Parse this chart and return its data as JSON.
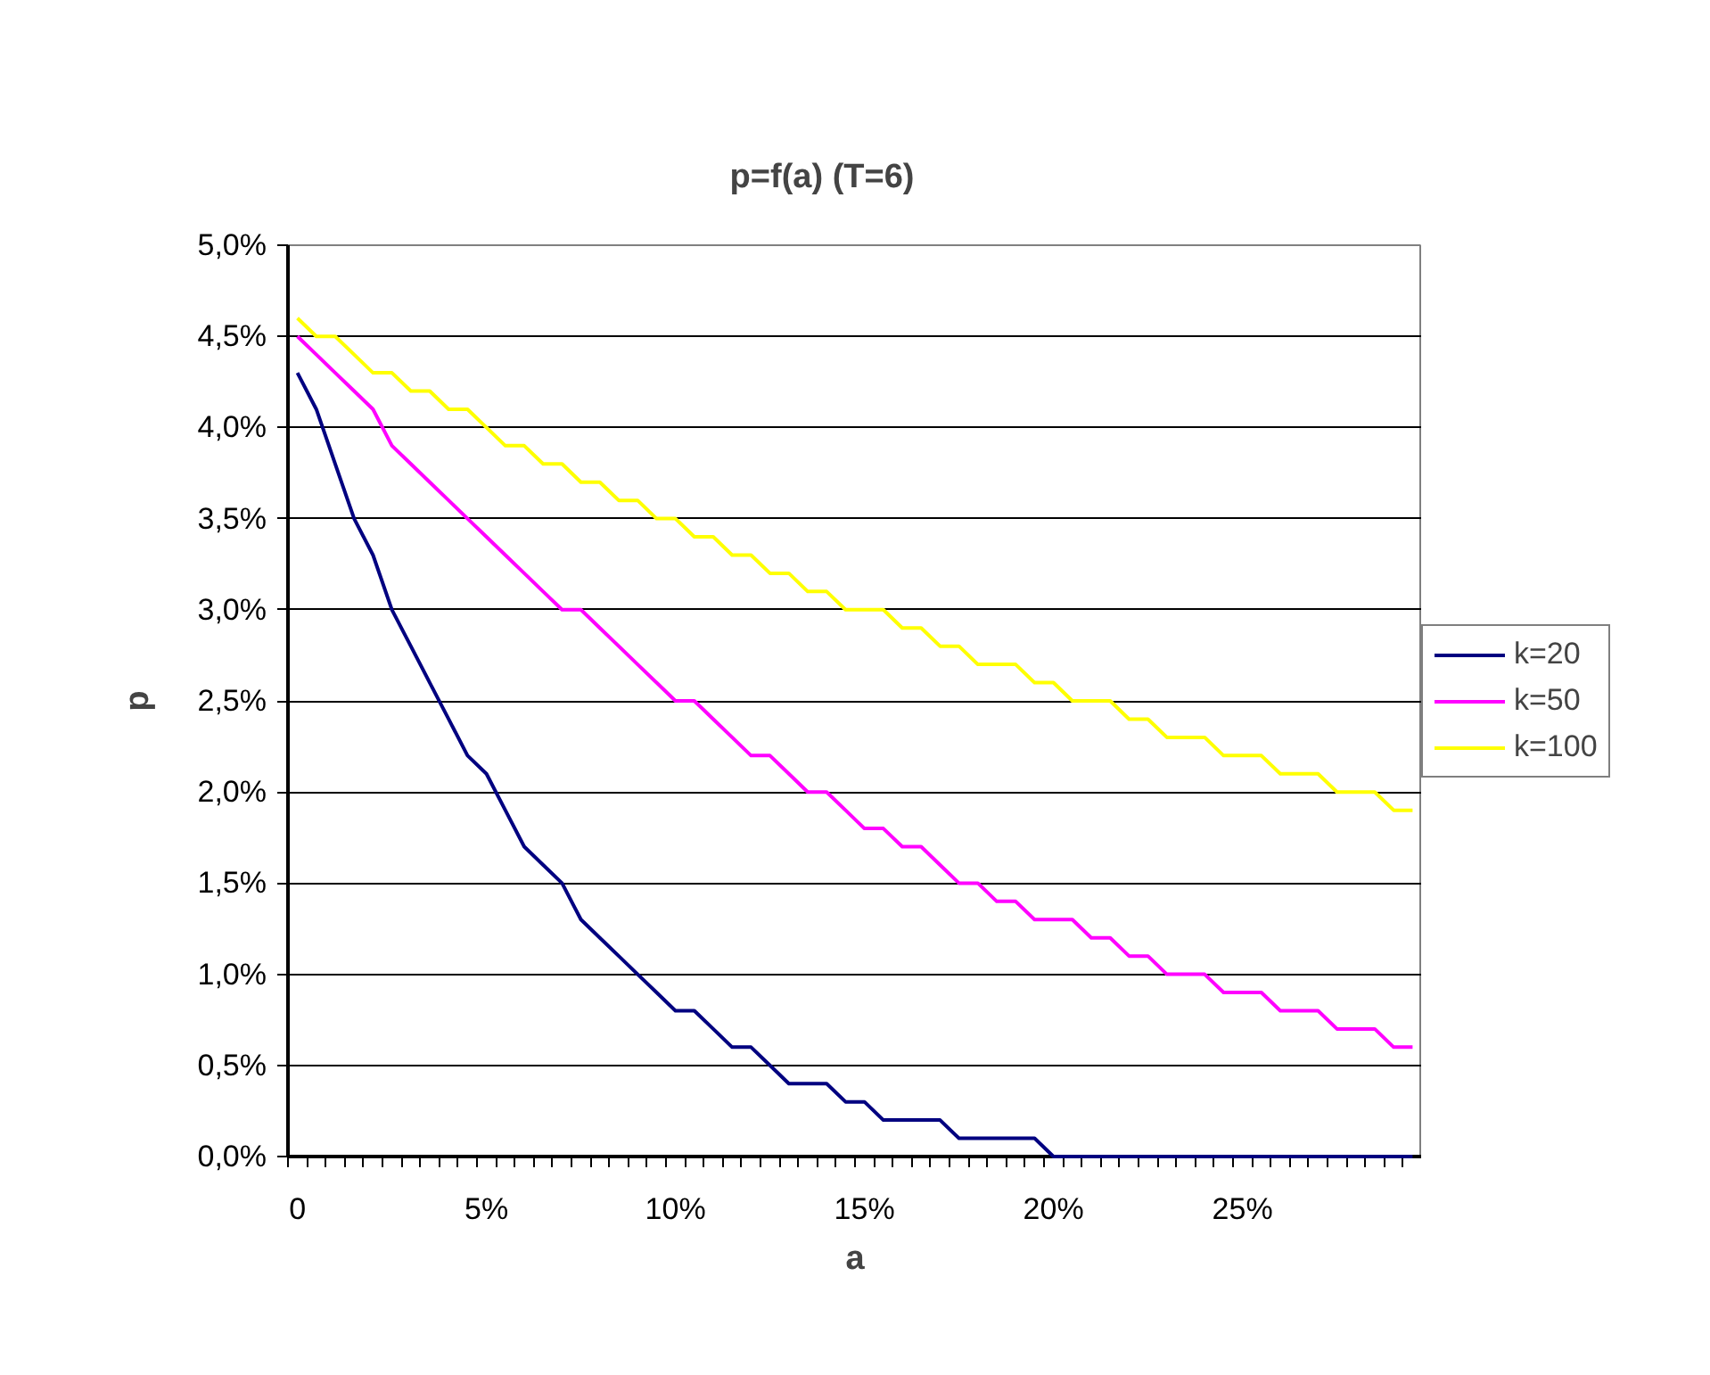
{
  "chart_data": {
    "type": "line",
    "title": "p=f(a)        (T=6)",
    "xlabel": "a",
    "ylabel": "p",
    "categories": [
      "0",
      null,
      null,
      null,
      null,
      null,
      null,
      null,
      null,
      null,
      "5%",
      null,
      null,
      null,
      null,
      null,
      null,
      null,
      null,
      null,
      "10%",
      null,
      null,
      null,
      null,
      null,
      null,
      null,
      null,
      null,
      "15%",
      null,
      null,
      null,
      null,
      null,
      null,
      null,
      null,
      null,
      "20%",
      null,
      null,
      null,
      null,
      null,
      null,
      null,
      null,
      null,
      "25%",
      null,
      null,
      null,
      null,
      null,
      null,
      null,
      null,
      null
    ],
    "ylim": [
      0,
      5
    ],
    "yticks": [
      {
        "value": 0,
        "label": "0,0%"
      },
      {
        "value": 0.5,
        "label": "0,5%"
      },
      {
        "value": 1,
        "label": "1,0%"
      },
      {
        "value": 1.5,
        "label": "1,5%"
      },
      {
        "value": 2,
        "label": "2,0%"
      },
      {
        "value": 2.5,
        "label": "2,5%"
      },
      {
        "value": 3,
        "label": "3,0%"
      },
      {
        "value": 3.5,
        "label": "3,5%"
      },
      {
        "value": 4,
        "label": "4,0%"
      },
      {
        "value": 4.5,
        "label": "4,5%"
      },
      {
        "value": 5,
        "label": "5,0%"
      }
    ],
    "grid": "y",
    "legend": "right",
    "series": [
      {
        "name": "k=20",
        "color": "#000080",
        "values": [
          4.3,
          4.1,
          3.8,
          3.5,
          3.3,
          3.0,
          2.8,
          2.6,
          2.4,
          2.2,
          2.1,
          1.9,
          1.7,
          1.6,
          1.5,
          1.3,
          1.2,
          1.1,
          1.0,
          0.9,
          0.8,
          0.8,
          0.7,
          0.6,
          0.6,
          0.5,
          0.4,
          0.4,
          0.4,
          0.3,
          0.3,
          0.2,
          0.2,
          0.2,
          0.2,
          0.1,
          0.1,
          0.1,
          0.1,
          0.1,
          0,
          0,
          0,
          0,
          0,
          0,
          0,
          0,
          0,
          0,
          0,
          0,
          0,
          0,
          0,
          0,
          0,
          0,
          0,
          0
        ]
      },
      {
        "name": "k=50",
        "color": "#ff00ff",
        "values": [
          4.5,
          4.4,
          4.3,
          4.2,
          4.1,
          3.9,
          3.8,
          3.7,
          3.6,
          3.5,
          3.4,
          3.3,
          3.2,
          3.1,
          3.0,
          3.0,
          2.9,
          2.8,
          2.7,
          2.6,
          2.5,
          2.5,
          2.4,
          2.3,
          2.2,
          2.2,
          2.1,
          2.0,
          2.0,
          1.9,
          1.8,
          1.8,
          1.7,
          1.7,
          1.6,
          1.5,
          1.5,
          1.4,
          1.4,
          1.3,
          1.3,
          1.3,
          1.2,
          1.2,
          1.1,
          1.1,
          1.0,
          1.0,
          1.0,
          0.9,
          0.9,
          0.9,
          0.8,
          0.8,
          0.8,
          0.7,
          0.7,
          0.7,
          0.6,
          0.6
        ]
      },
      {
        "name": "k=100",
        "color": "#ffff00",
        "values": [
          4.6,
          4.5,
          4.5,
          4.4,
          4.3,
          4.3,
          4.2,
          4.2,
          4.1,
          4.1,
          4.0,
          3.9,
          3.9,
          3.8,
          3.8,
          3.7,
          3.7,
          3.6,
          3.6,
          3.5,
          3.5,
          3.4,
          3.4,
          3.3,
          3.3,
          3.2,
          3.2,
          3.1,
          3.1,
          3.0,
          3.0,
          3.0,
          2.9,
          2.9,
          2.8,
          2.8,
          2.7,
          2.7,
          2.7,
          2.6,
          2.6,
          2.5,
          2.5,
          2.5,
          2.4,
          2.4,
          2.3,
          2.3,
          2.3,
          2.2,
          2.2,
          2.2,
          2.1,
          2.1,
          2.1,
          2.0,
          2.0,
          2.0,
          1.9,
          1.9
        ]
      }
    ]
  }
}
